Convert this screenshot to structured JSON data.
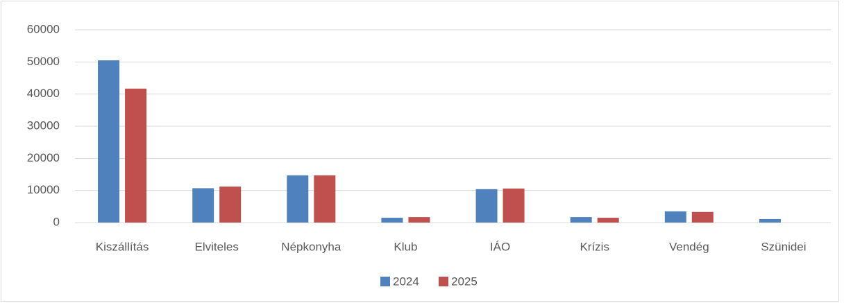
{
  "chart_data": {
    "type": "bar",
    "categories": [
      "Kiszállítás",
      "Elviteles",
      "Népkonyha",
      "Klub",
      "IÁO",
      "Krízis",
      "Vendég",
      "Szünidei"
    ],
    "series": [
      {
        "name": "2024",
        "color": "#4f81bd",
        "values": [
          50500,
          10700,
          14700,
          1500,
          10400,
          1700,
          3500,
          1100
        ]
      },
      {
        "name": "2025",
        "color": "#c0504d",
        "values": [
          41700,
          11200,
          14700,
          1700,
          10600,
          1500,
          3300,
          null
        ]
      }
    ],
    "ylim": [
      0,
      60000
    ],
    "yticks": [
      0,
      10000,
      20000,
      30000,
      40000,
      50000,
      60000
    ],
    "grid": true,
    "legend": "bottom"
  }
}
